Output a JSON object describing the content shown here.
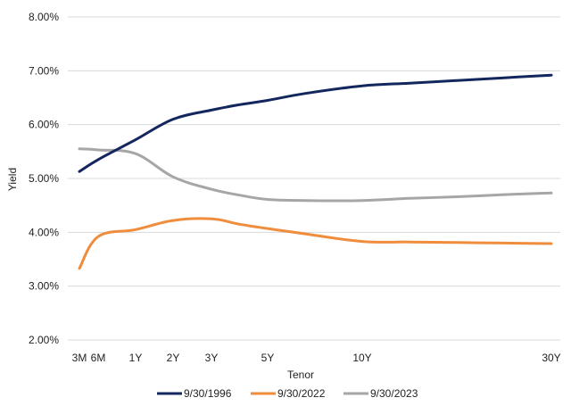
{
  "chart_data": {
    "type": "line",
    "title": "",
    "xlabel": "Tenor",
    "ylabel": "Yield",
    "ylim": [
      2.0,
      8.0
    ],
    "y_ticks": [
      2,
      3,
      4,
      5,
      6,
      7,
      8
    ],
    "y_tick_labels": [
      "2.00%",
      "3.00%",
      "4.00%",
      "5.00%",
      "6.00%",
      "7.00%",
      "8.00%"
    ],
    "x_domain_years": [
      0.25,
      30
    ],
    "x_ticks": [
      {
        "label": "3M",
        "years": 0.25
      },
      {
        "label": "6M",
        "years": 0.5
      },
      {
        "label": "1Y",
        "years": 1
      },
      {
        "label": "2Y",
        "years": 2
      },
      {
        "label": "3Y",
        "years": 3
      },
      {
        "label": "5Y",
        "years": 5
      },
      {
        "label": "10Y",
        "years": 10
      },
      {
        "label": "30Y",
        "years": 30
      }
    ],
    "grid": true,
    "legend_position": "bottom",
    "series": [
      {
        "name": "9/30/1996",
        "color": "#13275e",
        "points": [
          [
            0.25,
            5.13
          ],
          [
            0.5,
            5.35
          ],
          [
            1,
            5.72
          ],
          [
            2,
            6.1
          ],
          [
            3,
            6.27
          ],
          [
            4,
            6.37
          ],
          [
            5,
            6.45
          ],
          [
            7,
            6.58
          ],
          [
            10,
            6.72
          ],
          [
            15,
            6.77
          ],
          [
            20,
            6.82
          ],
          [
            25,
            6.87
          ],
          [
            30,
            6.92
          ]
        ]
      },
      {
        "name": "9/30/2022",
        "color": "#ef8d3c",
        "points": [
          [
            0.25,
            3.33
          ],
          [
            0.5,
            3.92
          ],
          [
            1,
            4.05
          ],
          [
            2,
            4.22
          ],
          [
            3,
            4.25
          ],
          [
            4,
            4.15
          ],
          [
            5,
            4.07
          ],
          [
            7,
            3.97
          ],
          [
            10,
            3.83
          ],
          [
            15,
            3.82
          ],
          [
            20,
            3.81
          ],
          [
            25,
            3.8
          ],
          [
            30,
            3.79
          ]
        ]
      },
      {
        "name": "9/30/2023",
        "color": "#a6a6a6",
        "points": [
          [
            0.25,
            5.55
          ],
          [
            0.5,
            5.53
          ],
          [
            1,
            5.46
          ],
          [
            2,
            5.03
          ],
          [
            3,
            4.8
          ],
          [
            4,
            4.69
          ],
          [
            5,
            4.61
          ],
          [
            7,
            4.59
          ],
          [
            10,
            4.59
          ],
          [
            15,
            4.63
          ],
          [
            20,
            4.66
          ],
          [
            25,
            4.7
          ],
          [
            30,
            4.73
          ]
        ]
      }
    ]
  }
}
